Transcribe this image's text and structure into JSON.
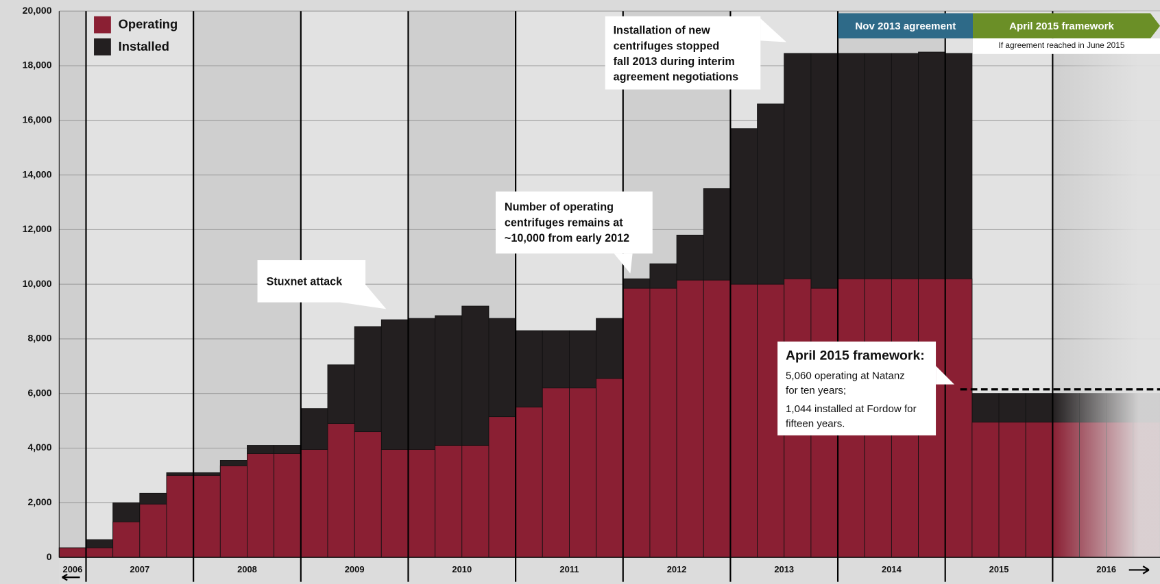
{
  "chart_data": {
    "type": "overlap_bar",
    "years": [
      "2006",
      "2007",
      "2008",
      "2009",
      "2010",
      "2011",
      "2012",
      "2013",
      "2014",
      "2015",
      "2016"
    ],
    "categories": [
      null,
      null,
      null,
      null,
      null,
      null,
      null,
      null,
      null,
      null,
      null,
      null,
      null,
      null,
      null,
      null,
      null,
      null,
      null,
      null,
      null,
      null,
      null,
      null,
      null,
      null,
      null,
      null,
      null,
      null,
      null,
      null,
      null,
      null,
      null,
      null,
      null,
      null,
      null,
      null,
      null
    ],
    "series": [
      {
        "name": "Operating",
        "color": "#8a1f33",
        "values": [
          350,
          350,
          1300,
          1950,
          3000,
          3000,
          3350,
          3800,
          3800,
          3950,
          4900,
          4600,
          3950,
          3950,
          4100,
          4100,
          5150,
          5500,
          6200,
          6200,
          6550,
          9850,
          9850,
          10150,
          10150,
          10000,
          10000,
          10200,
          9850,
          10200,
          10200,
          10200,
          10200,
          10200,
          4950,
          4950,
          4950,
          4950,
          4950,
          4950,
          4950
        ]
      },
      {
        "name": "Installed",
        "color": "#231f20",
        "values": [
          350,
          650,
          2000,
          2350,
          3100,
          3100,
          3550,
          4100,
          4100,
          5450,
          7050,
          8450,
          8700,
          8750,
          8850,
          9200,
          8750,
          8300,
          8300,
          8300,
          8750,
          10200,
          10750,
          11800,
          13500,
          15700,
          16600,
          18450,
          18450,
          18450,
          18450,
          18450,
          18500,
          18450,
          6000,
          6000,
          6000,
          6000,
          6000,
          6000,
          6000
        ]
      }
    ],
    "ylim": [
      0,
      20000
    ],
    "yticks": [
      0,
      {
        "value": 2000,
        "label": "2,000"
      },
      {
        "value": 4000,
        "label": "4,000"
      },
      {
        "value": 6000,
        "label": "6,000"
      },
      {
        "value": 8000,
        "label": "8,000"
      },
      {
        "value": 10000,
        "label": "10,000"
      },
      {
        "value": 12000,
        "label": "12,000"
      },
      {
        "value": 14000,
        "label": "14,000"
      },
      {
        "value": 16000,
        "label": "16,000"
      },
      {
        "value": 18000,
        "label": "18,000"
      },
      {
        "value": 20000,
        "label": "20,000"
      }
    ],
    "grid": true,
    "reference_line": 6150,
    "annotations": [
      {
        "lines": [
          "Stuxnet attack"
        ]
      },
      {
        "lines": [
          "Number of operating",
          "centrifuges remains at",
          "~10,000 from early 2012"
        ]
      },
      {
        "lines": [
          "Installation of new",
          "centrifuges stopped",
          "fall 2013 during interim",
          "agreement negotiations"
        ]
      },
      {
        "title": "April 2015 framework:",
        "lines": [
          "5,060 operating at Natanz",
          "for ten years;",
          "1,044 installed at Fordow for",
          "fifteen years."
        ]
      }
    ],
    "timeline": [
      {
        "label": "Nov 2013 agreement",
        "color": "#2e6a88"
      },
      {
        "label": "April 2015 framework",
        "color": "#6b8f27",
        "note": "If agreement reached in June 2015"
      }
    ]
  }
}
